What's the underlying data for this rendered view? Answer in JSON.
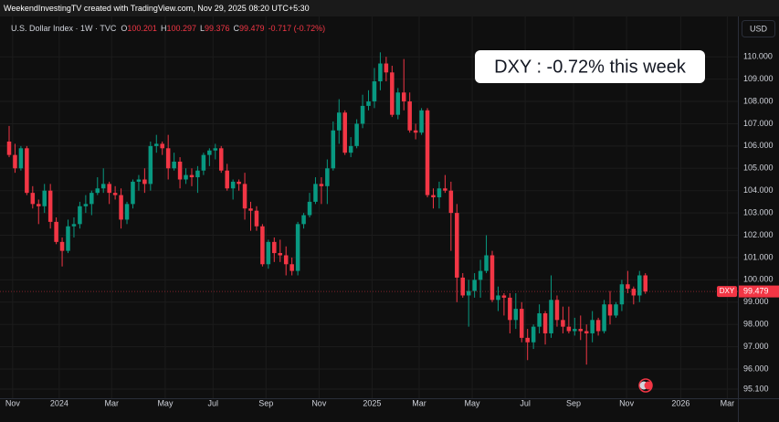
{
  "chart_data": {
    "type": "candlestick",
    "header": "WeekendInvestingTV created with TradingView.com, Nov 29, 2025 08:20 UTC+5:30",
    "currency": "USD",
    "legend": {
      "name": "U.S. Dollar Index · 1W · TVC",
      "items": [
        {
          "label": "O",
          "value": "100.201"
        },
        {
          "label": "H",
          "value": "100.297"
        },
        {
          "label": "L",
          "value": "99.376"
        },
        {
          "label": "C",
          "value": "99.479"
        }
      ],
      "change": "-0.717 (-0.72%)"
    },
    "annotation": "DXY : -0.72% this week",
    "up_color": "#089981",
    "down_color": "#f23645",
    "open": [
      106.2,
      105.6,
      105.0,
      105.9,
      103.9,
      103.4,
      103.3,
      104.0,
      102.6,
      101.7,
      101.3,
      102.4,
      102.5,
      103.3,
      103.4,
      103.9,
      104.1,
      104.3,
      103.9,
      103.8,
      102.7,
      103.4,
      104.4,
      104.5,
      104.3,
      106.0,
      106.1,
      105.9,
      105.0,
      105.3,
      104.5,
      104.7,
      104.6,
      104.9,
      105.6,
      105.8,
      105.9,
      104.9,
      104.1,
      104.4,
      104.3,
      103.2,
      103.1,
      102.4,
      100.7,
      101.7,
      101.2,
      101.1,
      100.7,
      100.4,
      102.5,
      102.9,
      103.5,
      104.3,
      104.2,
      105.0,
      106.7,
      107.5,
      105.7,
      106.0,
      107.0,
      107.8,
      108.0,
      108.9,
      109.7,
      109.3,
      107.4,
      108.4,
      108.0,
      106.7,
      106.6,
      107.6,
      103.8,
      103.7,
      104.1,
      104.0,
      103.0,
      100.1,
      99.3,
      99.5,
      100.0,
      100.4,
      101.1,
      99.1,
      99.3,
      99.2,
      98.2,
      98.7,
      97.4,
      97.2,
      97.9,
      98.5,
      97.6,
      99.1,
      98.2,
      97.9,
      97.7,
      97.8,
      97.7,
      97.6,
      98.2,
      97.7,
      98.9,
      98.4,
      98.9,
      99.8,
      99.6,
      99.3,
      100.201
    ],
    "high": [
      106.9,
      106.1,
      106.0,
      106.0,
      104.2,
      103.6,
      104.3,
      104.3,
      102.8,
      101.9,
      102.7,
      102.8,
      103.5,
      103.8,
      104.0,
      104.6,
      105.0,
      104.4,
      104.2,
      104.1,
      103.5,
      104.5,
      104.7,
      105.0,
      106.2,
      106.5,
      106.2,
      106.5,
      105.7,
      105.5,
      105.0,
      105.0,
      105.1,
      105.7,
      105.9,
      106.1,
      106.0,
      105.2,
      104.5,
      104.5,
      104.8,
      103.5,
      103.3,
      102.5,
      101.8,
      101.9,
      101.8,
      101.5,
      101.0,
      102.6,
      103.0,
      103.9,
      104.6,
      104.6,
      105.4,
      107.1,
      108.1,
      107.6,
      106.4,
      107.2,
      108.3,
      108.5,
      109.5,
      110.2,
      110.0,
      109.6,
      108.6,
      109.9,
      108.4,
      107.0,
      107.7,
      107.7,
      104.1,
      104.4,
      104.7,
      104.4,
      103.4,
      100.3,
      100.0,
      100.3,
      100.9,
      102.0,
      101.3,
      99.7,
      99.4,
      99.4,
      99.4,
      99.0,
      97.8,
      98.0,
      98.9,
      98.6,
      100.2,
      99.3,
      98.8,
      98.8,
      98.3,
      98.4,
      98.0,
      98.6,
      98.3,
      99.1,
      99.5,
      99.0,
      100.0,
      100.4,
      99.7,
      100.4,
      100.297
    ],
    "low": [
      105.5,
      104.8,
      104.9,
      103.8,
      103.2,
      102.5,
      103.0,
      102.3,
      101.6,
      100.6,
      101.2,
      101.9,
      102.3,
      103.0,
      102.9,
      103.8,
      103.9,
      103.4,
      103.6,
      102.3,
      102.5,
      103.2,
      104.0,
      103.9,
      104.0,
      105.7,
      105.6,
      104.5,
      104.9,
      104.1,
      104.3,
      104.2,
      103.9,
      104.7,
      105.1,
      105.4,
      104.8,
      104.0,
      103.6,
      104.0,
      102.7,
      102.2,
      102.2,
      100.6,
      100.5,
      100.8,
      100.8,
      100.2,
      100.2,
      100.2,
      102.3,
      102.8,
      103.4,
      103.4,
      103.4,
      104.9,
      106.1,
      105.6,
      105.5,
      105.9,
      106.8,
      107.6,
      107.7,
      108.5,
      108.9,
      107.3,
      107.2,
      107.6,
      106.6,
      106.3,
      106.5,
      103.7,
      103.2,
      103.2,
      103.9,
      101.3,
      99.0,
      99.2,
      97.9,
      99.2,
      99.2,
      100.3,
      99.0,
      98.6,
      98.4,
      97.6,
      97.8,
      97.2,
      96.4,
      96.9,
      97.6,
      97.1,
      97.4,
      97.9,
      97.6,
      97.6,
      97.5,
      97.3,
      96.2,
      97.2,
      97.5,
      97.6,
      98.0,
      98.3,
      98.6,
      99.4,
      98.9,
      99.0,
      99.376
    ],
    "close": [
      105.6,
      105.0,
      105.9,
      103.9,
      103.4,
      103.3,
      104.0,
      102.6,
      101.7,
      101.3,
      102.4,
      102.5,
      103.3,
      103.4,
      103.9,
      104.1,
      104.3,
      103.9,
      103.8,
      102.7,
      103.4,
      104.4,
      104.5,
      104.3,
      106.0,
      106.1,
      105.9,
      105.0,
      105.3,
      104.5,
      104.7,
      104.6,
      104.9,
      105.6,
      105.8,
      105.9,
      104.9,
      104.1,
      104.4,
      104.3,
      103.2,
      103.1,
      102.4,
      100.7,
      101.7,
      101.2,
      101.1,
      100.7,
      100.4,
      102.5,
      102.9,
      103.5,
      104.3,
      104.2,
      105.0,
      106.7,
      107.5,
      105.7,
      106.0,
      107.0,
      107.8,
      108.0,
      108.9,
      109.7,
      109.3,
      107.4,
      108.4,
      108.0,
      106.7,
      106.6,
      107.6,
      103.8,
      103.7,
      104.1,
      104.0,
      103.0,
      100.1,
      99.3,
      99.5,
      100.0,
      100.4,
      101.1,
      99.1,
      99.3,
      99.2,
      98.2,
      98.7,
      97.4,
      97.2,
      97.9,
      98.5,
      97.6,
      99.1,
      98.2,
      97.9,
      97.7,
      97.8,
      97.7,
      97.6,
      98.2,
      97.7,
      98.9,
      98.4,
      98.9,
      99.8,
      99.6,
      99.3,
      100.2,
      99.479
    ],
    "xlim": [
      -1.55,
      123.7
    ],
    "xticks": [
      {
        "value": 0.6,
        "label": "Nov"
      },
      {
        "value": 8.5,
        "label": "2024"
      },
      {
        "value": 17.4,
        "label": "Mar"
      },
      {
        "value": 26.5,
        "label": "May"
      },
      {
        "value": 34.6,
        "label": "Jul"
      },
      {
        "value": 43.6,
        "label": "Sep"
      },
      {
        "value": 52.6,
        "label": "Nov"
      },
      {
        "value": 61.6,
        "label": "2025"
      },
      {
        "value": 69.6,
        "label": "Mar"
      },
      {
        "value": 78.6,
        "label": "May"
      },
      {
        "value": 87.6,
        "label": "Jul"
      },
      {
        "value": 95.8,
        "label": "Sep"
      },
      {
        "value": 104.8,
        "label": "Nov"
      },
      {
        "value": 114.0,
        "label": "2026"
      },
      {
        "value": 121.9,
        "label": "Mar"
      }
    ],
    "ylim": [
      94.65,
      111.81
    ],
    "yticks": [
      {
        "value": 110,
        "label": "110.000"
      },
      {
        "value": 109,
        "label": "109.000"
      },
      {
        "value": 108,
        "label": "108.000"
      },
      {
        "value": 107,
        "label": "107.000"
      },
      {
        "value": 106,
        "label": "106.000"
      },
      {
        "value": 105,
        "label": "105.000"
      },
      {
        "value": 104,
        "label": "104.000"
      },
      {
        "value": 103,
        "label": "103.000"
      },
      {
        "value": 102,
        "label": "102.000"
      },
      {
        "value": 101,
        "label": "101.000"
      },
      {
        "value": 100,
        "label": "100.000"
      },
      {
        "value": 99,
        "label": "99.000"
      },
      {
        "value": 98,
        "label": "98.000"
      },
      {
        "value": 97,
        "label": "97.000"
      },
      {
        "value": 96,
        "label": "96.000"
      },
      {
        "value": 95.1,
        "label": "95.100"
      }
    ],
    "grid": true,
    "price_tag": {
      "label": "DXY",
      "value": 99.479,
      "value_label": "99.479"
    }
  }
}
